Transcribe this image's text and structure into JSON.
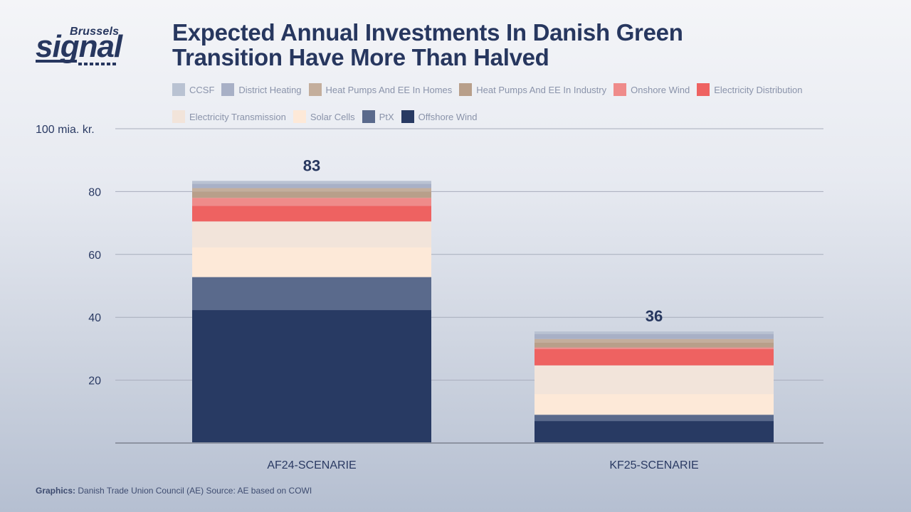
{
  "logo": {
    "top": "Brussels",
    "main": "signal"
  },
  "title": "Expected Annual Investments In Danish Green Transition Have More Than Halved",
  "footer": {
    "prefix": "Graphics:",
    "text": "Danish Trade Union Council (AE) Source: AE based on COWI"
  },
  "chart_data": {
    "type": "bar",
    "stacked": true,
    "title": "Expected Annual Investments In Danish Green Transition Have More Than Halved",
    "xlabel": "",
    "ylabel": "100 mia. kr.",
    "ylim": [
      0,
      100
    ],
    "yticks": [
      20,
      40,
      60,
      80
    ],
    "ytick_labels": [
      "20",
      "40",
      "60",
      "80"
    ],
    "ytop_label": "100 mia. kr.",
    "grid": true,
    "legend_position": "top",
    "categories": [
      "AF24-SCENARIE",
      "KF25-SCENARIE"
    ],
    "totals": [
      83,
      36
    ],
    "total_labels": [
      "83",
      "36"
    ],
    "series": [
      {
        "name": "Offshore Wind",
        "color": "#283a63",
        "values": [
          42.3,
          7.0
        ]
      },
      {
        "name": "PtX",
        "color": "#5a6a8c",
        "values": [
          10.5,
          2.0
        ]
      },
      {
        "name": "Solar Cells",
        "color": "#fde9d8",
        "values": [
          9.5,
          6.6
        ]
      },
      {
        "name": "Electricity Transmission",
        "color": "#f2e4da",
        "values": [
          8.2,
          9.1
        ]
      },
      {
        "name": "Electricity Distribution",
        "color": "#ee6261",
        "values": [
          5.0,
          5.2
        ]
      },
      {
        "name": "Onshore Wind",
        "color": "#ef8b8a",
        "values": [
          2.5,
          0.5
        ]
      },
      {
        "name": "Heat Pumps And EE In Industry",
        "color": "#b89f8a",
        "values": [
          2.0,
          1.5
        ]
      },
      {
        "name": "Heat Pumps And EE In Homes",
        "color": "#c4ae9c",
        "values": [
          1.1,
          1.2
        ]
      },
      {
        "name": "District Heating",
        "color": "#a8b0c6",
        "values": [
          1.4,
          1.6
        ]
      },
      {
        "name": "CCSF",
        "color": "#b9c2d2",
        "values": [
          0.9,
          0.8
        ]
      }
    ],
    "legend_order": [
      "CCSF",
      "District Heating",
      "Heat Pumps And EE In Homes",
      "Heat Pumps And EE In Industry",
      "Onshore Wind",
      "Electricity Distribution",
      "Electricity Transmission",
      "Solar Cells",
      "PtX",
      "Offshore Wind"
    ]
  }
}
